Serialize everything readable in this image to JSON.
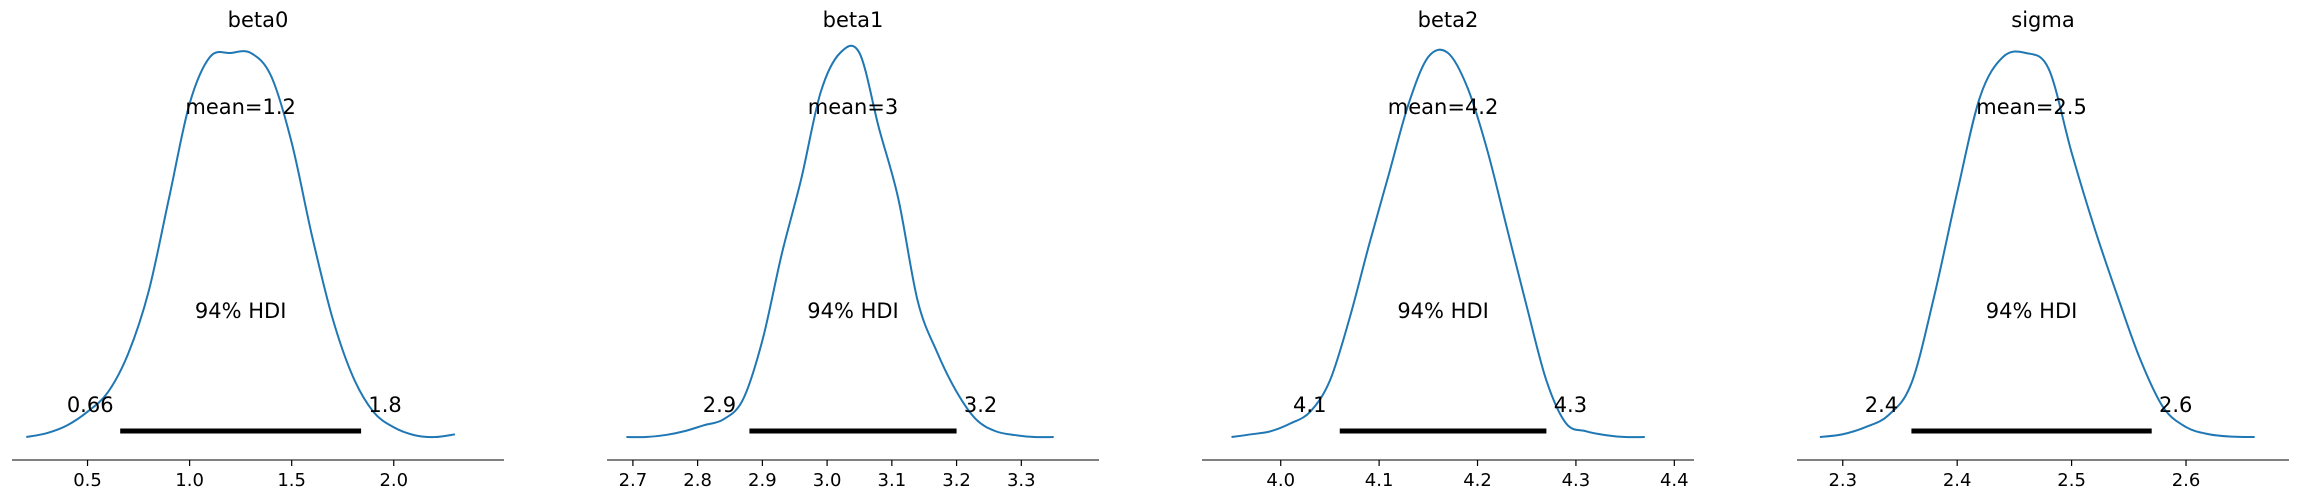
{
  "chart_data": [
    {
      "type": "line",
      "title": "beta0",
      "mean_label": "mean=1.2",
      "hdi_label": "94% HDI",
      "hdi_low_label": "0.66",
      "hdi_high_label": "1.8",
      "hdi": [
        0.66,
        1.84
      ],
      "xlim": [
        0.13,
        2.54
      ],
      "x_ticks": [
        0.5,
        1.0,
        1.5,
        2.0
      ],
      "x_tick_labels": [
        "0.5",
        "1.0",
        "1.5",
        "2.0"
      ],
      "color": "#1f77b4",
      "x": [
        0.2,
        0.3,
        0.4,
        0.5,
        0.6,
        0.7,
        0.8,
        0.9,
        1.0,
        1.1,
        1.2,
        1.3,
        1.4,
        1.5,
        1.6,
        1.7,
        1.8,
        1.9,
        2.0,
        2.1,
        2.2,
        2.3
      ],
      "y": [
        0.005,
        0.015,
        0.035,
        0.07,
        0.12,
        0.22,
        0.38,
        0.62,
        0.86,
        0.98,
        0.99,
        0.99,
        0.93,
        0.76,
        0.52,
        0.31,
        0.16,
        0.07,
        0.03,
        0.01,
        0.005,
        0.012
      ]
    },
    {
      "type": "line",
      "title": "beta1",
      "mean_label": "mean=3",
      "hdi_label": "94% HDI",
      "hdi_low_label": "2.9",
      "hdi_high_label": "3.2",
      "hdi": [
        2.88,
        3.2
      ],
      "xlim": [
        2.66,
        3.42
      ],
      "x_ticks": [
        2.7,
        2.8,
        2.9,
        3.0,
        3.1,
        3.2,
        3.3
      ],
      "x_tick_labels": [
        "2.7",
        "2.8",
        "2.9",
        "3.0",
        "3.1",
        "3.2",
        "3.3"
      ],
      "color": "#1f77b4",
      "x": [
        2.69,
        2.72,
        2.75,
        2.78,
        2.81,
        2.84,
        2.87,
        2.9,
        2.93,
        2.96,
        2.99,
        3.02,
        3.05,
        3.08,
        3.11,
        3.14,
        3.17,
        3.2,
        3.23,
        3.26,
        3.29,
        3.32,
        3.35
      ],
      "y": [
        0.005,
        0.005,
        0.01,
        0.02,
        0.035,
        0.05,
        0.1,
        0.25,
        0.47,
        0.66,
        0.88,
        0.98,
        0.98,
        0.79,
        0.61,
        0.35,
        0.22,
        0.12,
        0.05,
        0.02,
        0.01,
        0.005,
        0.005
      ]
    },
    {
      "type": "line",
      "title": "beta2",
      "mean_label": "mean=4.2",
      "hdi_label": "94% HDI",
      "hdi_low_label": "4.1",
      "hdi_high_label": "4.3",
      "hdi": [
        4.06,
        4.27
      ],
      "xlim": [
        3.92,
        4.42
      ],
      "x_ticks": [
        4.0,
        4.1,
        4.2,
        4.3,
        4.4
      ],
      "x_tick_labels": [
        "4.0",
        "4.1",
        "4.2",
        "4.3",
        "4.4"
      ],
      "color": "#1f77b4",
      "x": [
        3.95,
        3.97,
        3.99,
        4.01,
        4.03,
        4.05,
        4.07,
        4.09,
        4.11,
        4.13,
        4.15,
        4.17,
        4.19,
        4.21,
        4.23,
        4.25,
        4.27,
        4.29,
        4.31,
        4.33,
        4.35,
        4.37
      ],
      "y": [
        0.005,
        0.012,
        0.02,
        0.04,
        0.07,
        0.15,
        0.31,
        0.5,
        0.68,
        0.86,
        0.98,
        0.99,
        0.9,
        0.74,
        0.54,
        0.34,
        0.15,
        0.04,
        0.02,
        0.01,
        0.005,
        0.005
      ]
    },
    {
      "type": "line",
      "title": "sigma",
      "mean_label": "mean=2.5",
      "hdi_label": "94% HDI",
      "hdi_low_label": "2.4",
      "hdi_high_label": "2.6",
      "hdi": [
        2.36,
        2.57
      ],
      "xlim": [
        2.26,
        2.69
      ],
      "x_ticks": [
        2.3,
        2.4,
        2.5,
        2.6
      ],
      "x_tick_labels": [
        "2.3",
        "2.4",
        "2.5",
        "2.6"
      ],
      "color": "#1f77b4",
      "x": [
        2.28,
        2.3,
        2.32,
        2.34,
        2.36,
        2.38,
        2.4,
        2.42,
        2.44,
        2.46,
        2.48,
        2.5,
        2.52,
        2.54,
        2.56,
        2.58,
        2.6,
        2.62,
        2.64,
        2.66
      ],
      "y": [
        0.005,
        0.012,
        0.03,
        0.06,
        0.14,
        0.36,
        0.62,
        0.86,
        0.96,
        0.97,
        0.93,
        0.72,
        0.53,
        0.36,
        0.2,
        0.08,
        0.03,
        0.012,
        0.006,
        0.005
      ]
    }
  ]
}
